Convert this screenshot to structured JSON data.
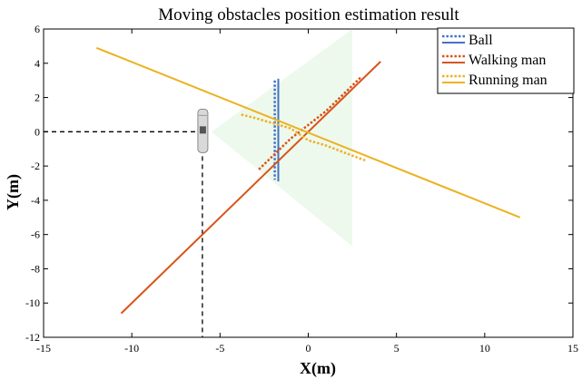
{
  "chart_data": {
    "type": "line",
    "title": "Moving obstacles position estimation result",
    "xlabel": "X(m)",
    "ylabel": "Y(m)",
    "xlim": [
      -15,
      15
    ],
    "ylim": [
      -12,
      6
    ],
    "xticks": [
      -15,
      -10,
      -5,
      0,
      5,
      10,
      15
    ],
    "yticks": [
      -12,
      -10,
      -8,
      -6,
      -4,
      -2,
      0,
      2,
      4,
      6
    ],
    "grid": false,
    "legend_position": "top-right",
    "series": [
      {
        "name": "Ball",
        "color": "#4472c4",
        "lines": [
          {
            "style": "dotted",
            "x": [
              -1.9,
              -1.9
            ],
            "y": [
              3.0,
              -2.8
            ]
          },
          {
            "style": "solid",
            "x": [
              -1.7,
              -1.7
            ],
            "y": [
              3.1,
              -2.9
            ]
          }
        ]
      },
      {
        "name": "Walking man",
        "color": "#d95319",
        "lines": [
          {
            "style": "dotted",
            "x": [
              -2.8,
              -2.0,
              -1.0,
              0.0,
              1.0,
              2.0,
              3.0
            ],
            "y": [
              -2.2,
              -1.4,
              -0.4,
              0.4,
              1.2,
              2.2,
              3.2
            ]
          },
          {
            "style": "solid",
            "x": [
              -10.6,
              4.1
            ],
            "y": [
              -10.6,
              4.1
            ]
          }
        ]
      },
      {
        "name": "Running man",
        "color": "#edb120",
        "lines": [
          {
            "style": "dotted",
            "x": [
              -3.8,
              -3.0,
              -2.0,
              -1.0,
              0.0,
              1.0,
              2.0,
              3.3
            ],
            "y": [
              1.0,
              0.8,
              0.5,
              0.2,
              -0.5,
              -0.8,
              -1.2,
              -1.7
            ]
          },
          {
            "style": "solid",
            "x": [
              -12.0,
              12.0
            ],
            "y": [
              4.9,
              -5.0
            ]
          }
        ]
      }
    ],
    "annotations": {
      "robot_position": {
        "x": -6,
        "y": 0
      },
      "view_cone": {
        "apex": [
          -6,
          0
        ],
        "edge_x": 2.5,
        "y_range": [
          -6.7,
          6.0
        ],
        "color": "#eaf8ea"
      }
    }
  }
}
